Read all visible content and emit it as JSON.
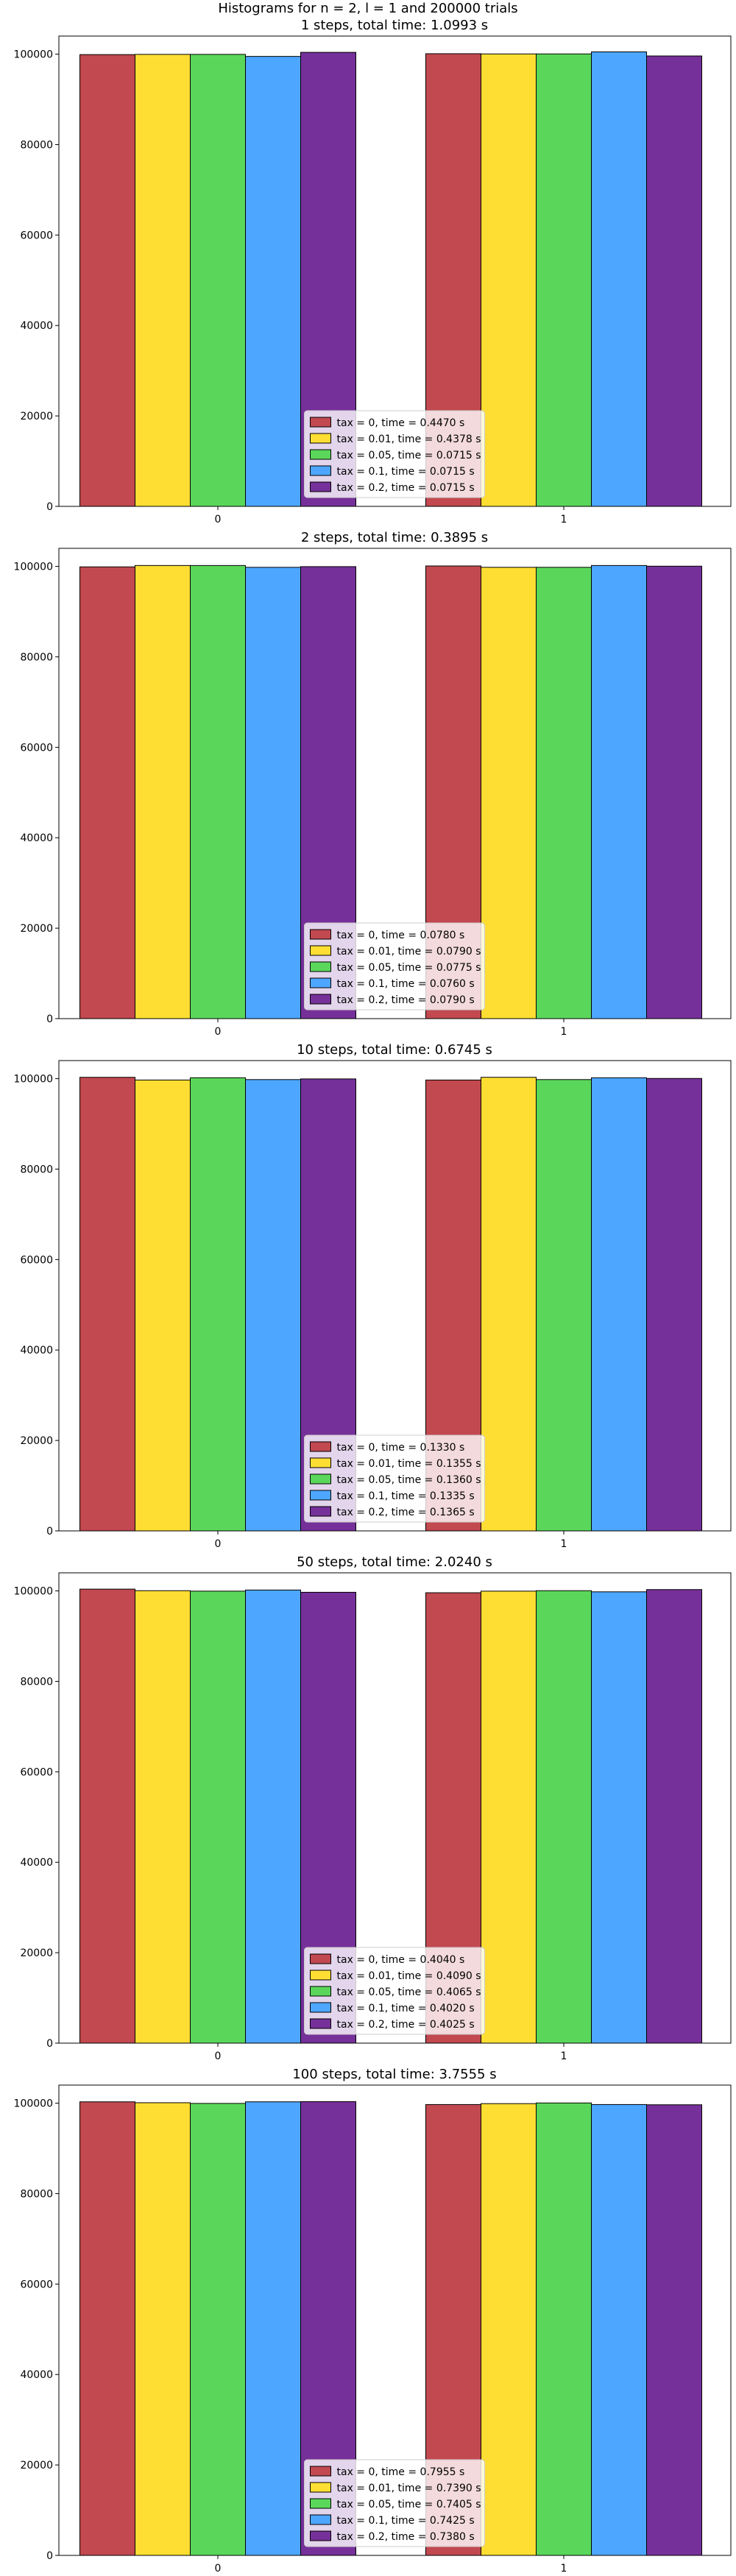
{
  "figure_title": "Histograms for n = 2, l = 1 and 200000 trials",
  "colors": [
    "#c1494f",
    "#fede33",
    "#5ad75a",
    "#4da6ff",
    "#763099"
  ],
  "chart_data": [
    {
      "type": "bar",
      "title": "1 steps, total time: 1.0993 s",
      "categories": [
        "0",
        "1"
      ],
      "ylim": [
        0,
        104000
      ],
      "yticks": [
        "0",
        "20000",
        "40000",
        "60000",
        "80000",
        "100000"
      ],
      "legend_position": "lower center",
      "series": [
        {
          "name": "tax = 0, time = 0.4470 s",
          "values": [
            99900,
            100100
          ]
        },
        {
          "name": "tax = 0.01, time = 0.4378 s",
          "values": [
            99950,
            100050
          ]
        },
        {
          "name": "tax = 0.05, time = 0.0715 s",
          "values": [
            99950,
            100050
          ]
        },
        {
          "name": "tax = 0.1, time = 0.0715 s",
          "values": [
            99500,
            100500
          ]
        },
        {
          "name": "tax = 0.2, time = 0.0715 s",
          "values": [
            100400,
            99600
          ]
        }
      ]
    },
    {
      "type": "bar",
      "title": "2 steps, total time: 0.3895 s",
      "categories": [
        "0",
        "1"
      ],
      "ylim": [
        0,
        104000
      ],
      "yticks": [
        "0",
        "20000",
        "40000",
        "60000",
        "80000",
        "100000"
      ],
      "legend_position": "lower center",
      "series": [
        {
          "name": "tax = 0, time = 0.0780 s",
          "values": [
            99900,
            100100
          ]
        },
        {
          "name": "tax = 0.01, time = 0.0790 s",
          "values": [
            100200,
            99800
          ]
        },
        {
          "name": "tax = 0.05, time = 0.0775 s",
          "values": [
            100200,
            99800
          ]
        },
        {
          "name": "tax = 0.1, time = 0.0760 s",
          "values": [
            99800,
            100200
          ]
        },
        {
          "name": "tax = 0.2, time = 0.0790 s",
          "values": [
            99950,
            100050
          ]
        }
      ]
    },
    {
      "type": "bar",
      "title": "10 steps, total time: 0.6745 s",
      "categories": [
        "0",
        "1"
      ],
      "ylim": [
        0,
        104000
      ],
      "yticks": [
        "0",
        "20000",
        "40000",
        "60000",
        "80000",
        "100000"
      ],
      "legend_position": "lower center",
      "series": [
        {
          "name": "tax = 0, time = 0.1330 s",
          "values": [
            100300,
            99700
          ]
        },
        {
          "name": "tax = 0.01, time = 0.1355 s",
          "values": [
            99700,
            100300
          ]
        },
        {
          "name": "tax = 0.05, time = 0.1360 s",
          "values": [
            100200,
            99800
          ]
        },
        {
          "name": "tax = 0.1, time = 0.1335 s",
          "values": [
            99800,
            100200
          ]
        },
        {
          "name": "tax = 0.2, time = 0.1365 s",
          "values": [
            99950,
            100050
          ]
        }
      ]
    },
    {
      "type": "bar",
      "title": "50 steps, total time: 2.0240 s",
      "categories": [
        "0",
        "1"
      ],
      "ylim": [
        0,
        104000
      ],
      "yticks": [
        "0",
        "20000",
        "40000",
        "60000",
        "80000",
        "100000"
      ],
      "legend_position": "lower center",
      "series": [
        {
          "name": "tax = 0, time = 0.4040 s",
          "values": [
            100400,
            99600
          ]
        },
        {
          "name": "tax = 0.01, time = 0.4090 s",
          "values": [
            100050,
            99950
          ]
        },
        {
          "name": "tax = 0.05, time = 0.4065 s",
          "values": [
            99950,
            100050
          ]
        },
        {
          "name": "tax = 0.1, time = 0.4020 s",
          "values": [
            100200,
            99800
          ]
        },
        {
          "name": "tax = 0.2, time = 0.4025 s",
          "values": [
            99700,
            100300
          ]
        }
      ]
    },
    {
      "type": "bar",
      "title": "100 steps, total time: 3.7555 s",
      "categories": [
        "0",
        "1"
      ],
      "ylim": [
        0,
        104000
      ],
      "yticks": [
        "0",
        "20000",
        "40000",
        "60000",
        "80000",
        "100000"
      ],
      "legend_position": "lower center",
      "series": [
        {
          "name": "tax = 0, time = 0.7955 s",
          "values": [
            100300,
            99700
          ]
        },
        {
          "name": "tax = 0.01, time = 0.7390 s",
          "values": [
            100100,
            99900
          ]
        },
        {
          "name": "tax = 0.05, time = 0.7405 s",
          "values": [
            99950,
            100050
          ]
        },
        {
          "name": "tax = 0.1, time = 0.7425 s",
          "values": [
            100300,
            99700
          ]
        },
        {
          "name": "tax = 0.2, time = 0.7380 s",
          "values": [
            100350,
            99650
          ]
        }
      ]
    }
  ]
}
